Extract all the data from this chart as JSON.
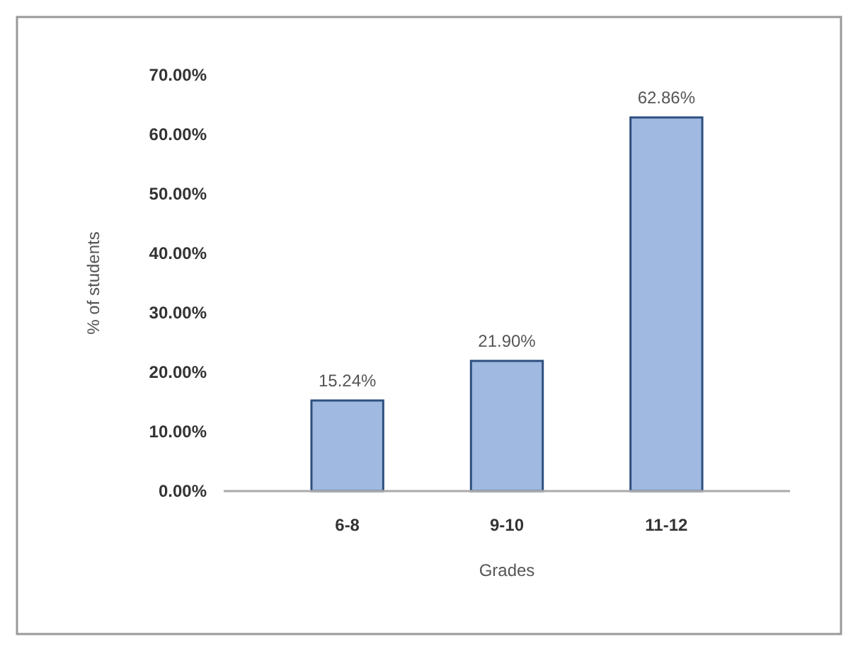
{
  "chart_data": {
    "type": "bar",
    "xlabel": "Grades",
    "ylabel": "% of students",
    "categories": [
      "6-8",
      "9-10",
      "11-12"
    ],
    "values": [
      15.24,
      21.9,
      62.86
    ],
    "value_labels": [
      "15.24%",
      "21.90%",
      "62.86%"
    ],
    "color": "#9fb9e0",
    "ylim": [
      0,
      70
    ],
    "yticks": [
      {
        "value": 0,
        "label": "0.00%"
      },
      {
        "value": 10,
        "label": "10.00%"
      },
      {
        "value": 20,
        "label": "20.00%"
      },
      {
        "value": 30,
        "label": "30.00%"
      },
      {
        "value": 40,
        "label": "40.00%"
      },
      {
        "value": 50,
        "label": "50.00%"
      },
      {
        "value": 60,
        "label": "60.00%"
      },
      {
        "value": 70,
        "label": "70.00%"
      }
    ],
    "grid": false
  }
}
